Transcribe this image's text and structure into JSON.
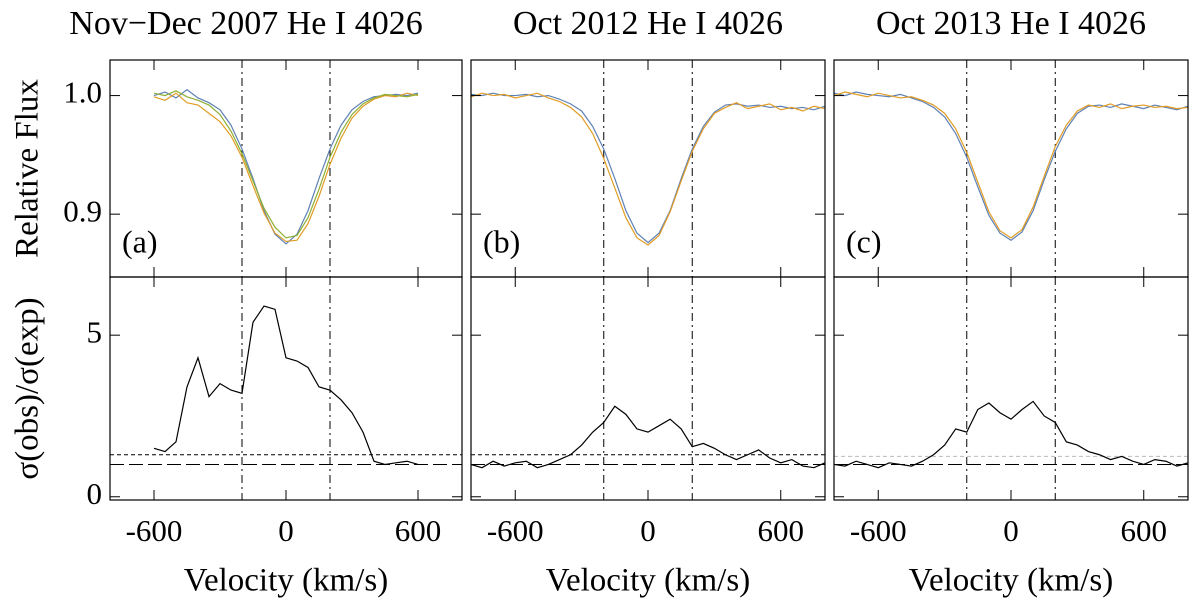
{
  "chart_data": [
    {
      "type": "line",
      "title": "Nov−Dec 2007 He I 4026",
      "y_label": "Relative Flux",
      "annotation": "(a)",
      "x": [
        -600,
        -550,
        -500,
        -450,
        -400,
        -350,
        -300,
        -250,
        -200,
        -150,
        -100,
        -50,
        0,
        50,
        100,
        150,
        200,
        250,
        300,
        350,
        400,
        450,
        500,
        550,
        600
      ],
      "series": [
        {
          "color": "#5e81b5",
          "values": [
            1.0,
            1.003,
            0.998,
            1.005,
            0.998,
            0.994,
            0.988,
            0.975,
            0.955,
            0.93,
            0.903,
            0.883,
            0.875,
            0.883,
            0.903,
            0.93,
            0.955,
            0.975,
            0.988,
            0.995,
            0.999,
            1.0,
            1.001,
            1.0,
            1.002
          ]
        },
        {
          "color": "#e19c24",
          "values": [
            0.999,
            0.996,
            1.002,
            0.994,
            0.992,
            0.985,
            0.978,
            0.966,
            0.948,
            0.924,
            0.901,
            0.884,
            0.877,
            0.878,
            0.892,
            0.915,
            0.942,
            0.964,
            0.981,
            0.991,
            0.997,
            1.0,
            0.999,
            1.002,
            1.0
          ]
        },
        {
          "color": "#8fb032",
          "values": [
            1.002,
            1.0,
            1.004,
            0.999,
            0.996,
            0.992,
            0.984,
            0.97,
            0.951,
            0.928,
            0.905,
            0.889,
            0.88,
            0.882,
            0.897,
            0.921,
            0.948,
            0.969,
            0.984,
            0.993,
            0.998,
            1.001,
            1.0,
            0.999,
            1.001
          ]
        }
      ],
      "xlim": [
        -800,
        800
      ],
      "xticks": [
        -600,
        0,
        600
      ],
      "ylim": [
        0.847,
        1.03
      ],
      "yticks": [
        0.9,
        {
          "value": 1,
          "label": "1.0"
        }
      ],
      "vlines": [
        -200,
        200
      ]
    },
    {
      "type": "line",
      "title": "Oct 2012 He I 4026",
      "annotation": "(b)",
      "x": [
        -800,
        -750,
        -700,
        -650,
        -600,
        -550,
        -500,
        -450,
        -400,
        -350,
        -300,
        -250,
        -200,
        -150,
        -100,
        -50,
        0,
        50,
        100,
        150,
        200,
        250,
        300,
        350,
        400,
        450,
        500,
        550,
        600,
        650,
        700,
        750,
        800
      ],
      "series": [
        {
          "color": "#5e81b5",
          "values": [
            1.001,
            1.0,
            1.002,
            1.0,
            1.0,
            1.001,
            0.999,
            1.0,
            0.997,
            0.993,
            0.987,
            0.974,
            0.955,
            0.93,
            0.903,
            0.884,
            0.876,
            0.884,
            0.903,
            0.93,
            0.955,
            0.974,
            0.986,
            0.992,
            0.993,
            0.991,
            0.992,
            0.99,
            0.991,
            0.989,
            0.99,
            0.988,
            0.991
          ]
        },
        {
          "color": "#e19c24",
          "values": [
            0.999,
            1.002,
            1.0,
            1.001,
            0.998,
            1.0,
            1.002,
            0.998,
            0.995,
            0.99,
            0.982,
            0.968,
            0.947,
            0.922,
            0.897,
            0.88,
            0.874,
            0.882,
            0.902,
            0.928,
            0.953,
            0.972,
            0.985,
            0.99,
            0.994,
            0.989,
            0.991,
            0.993,
            0.988,
            0.99,
            0.987,
            0.991,
            0.989
          ]
        }
      ],
      "xlim": [
        -800,
        800
      ],
      "xticks": [
        -600,
        0,
        600
      ],
      "ylim": [
        0.847,
        1.03
      ],
      "yticks": [
        0.9,
        {
          "value": 1,
          "label": "1.0"
        }
      ],
      "vlines": [
        -200,
        200
      ]
    },
    {
      "type": "line",
      "title": "Oct 2013 He I 4026",
      "annotation": "(c)",
      "x": [
        -800,
        -750,
        -700,
        -650,
        -600,
        -550,
        -500,
        -450,
        -400,
        -350,
        -300,
        -250,
        -200,
        -150,
        -100,
        -50,
        0,
        50,
        100,
        150,
        200,
        250,
        300,
        350,
        400,
        450,
        500,
        550,
        600,
        650,
        700,
        750,
        800
      ],
      "series": [
        {
          "color": "#5e81b5",
          "values": [
            1.002,
            1.0,
            1.003,
            1.001,
            1.0,
            0.999,
            1.001,
            0.998,
            0.995,
            0.99,
            0.982,
            0.968,
            0.948,
            0.923,
            0.899,
            0.884,
            0.878,
            0.885,
            0.903,
            0.929,
            0.953,
            0.972,
            0.985,
            0.991,
            0.992,
            0.99,
            0.993,
            0.991,
            0.989,
            0.992,
            0.99,
            0.988,
            0.991
          ]
        },
        {
          "color": "#e19c24",
          "values": [
            1.0,
            1.003,
            1.001,
            0.999,
            1.002,
            1.0,
            0.998,
            0.999,
            0.996,
            0.992,
            0.985,
            0.972,
            0.952,
            0.927,
            0.902,
            0.886,
            0.88,
            0.887,
            0.906,
            0.932,
            0.957,
            0.975,
            0.987,
            0.992,
            0.99,
            0.993,
            0.989,
            0.991,
            0.992,
            0.99,
            0.991,
            0.989,
            0.99
          ]
        }
      ],
      "xlim": [
        -800,
        800
      ],
      "xticks": [
        -600,
        0,
        600
      ],
      "ylim": [
        0.847,
        1.03
      ],
      "yticks": [
        0.9,
        {
          "value": 1,
          "label": "1.0"
        }
      ],
      "vlines": [
        -200,
        200
      ]
    },
    {
      "type": "line",
      "y_label": "σ(obs)/σ(exp)",
      "x_label": "Velocity (km/s)",
      "x": [
        -600,
        -550,
        -500,
        -450,
        -400,
        -350,
        -300,
        -250,
        -200,
        -150,
        -100,
        -50,
        0,
        50,
        100,
        150,
        200,
        250,
        300,
        350,
        400,
        450,
        500,
        550,
        600
      ],
      "series": [
        {
          "color": "#000000",
          "values": [
            1.5,
            1.4,
            1.7,
            3.4,
            4.3,
            3.1,
            3.5,
            3.3,
            3.2,
            5.4,
            5.9,
            5.8,
            4.3,
            4.2,
            4.0,
            3.4,
            3.3,
            3.0,
            2.6,
            2.0,
            1.1,
            1.0,
            1.05,
            1.1,
            1.0
          ]
        }
      ],
      "xlim": [
        -800,
        800
      ],
      "xticks": [
        -600,
        0,
        600
      ],
      "ylim": [
        -0.1,
        6.8
      ],
      "yticks": [
        0,
        5
      ],
      "vlines": [
        -200,
        200
      ],
      "hlines": [
        {
          "y": 1.3,
          "dash": "short",
          "color": "#000000"
        },
        {
          "y": 1,
          "dash": "long",
          "color": "#000000"
        }
      ]
    },
    {
      "type": "line",
      "x_label": "Velocity (km/s)",
      "x": [
        -800,
        -750,
        -700,
        -650,
        -600,
        -550,
        -500,
        -450,
        -400,
        -350,
        -300,
        -250,
        -200,
        -150,
        -100,
        -50,
        0,
        50,
        100,
        150,
        200,
        250,
        300,
        350,
        400,
        450,
        500,
        550,
        600,
        650,
        700,
        750,
        800
      ],
      "series": [
        {
          "color": "#000000",
          "values": [
            1.0,
            0.9,
            1.1,
            0.95,
            1.05,
            1.1,
            0.9,
            1.0,
            1.15,
            1.3,
            1.6,
            2.0,
            2.3,
            2.8,
            2.55,
            2.1,
            2.0,
            2.2,
            2.4,
            2.1,
            1.55,
            1.65,
            1.5,
            1.3,
            1.15,
            1.3,
            1.45,
            1.2,
            1.05,
            1.15,
            0.95,
            0.9,
            1.05
          ]
        }
      ],
      "xlim": [
        -800,
        800
      ],
      "xticks": [
        -600,
        0,
        600
      ],
      "ylim": [
        -0.1,
        6.8
      ],
      "yticks": [
        0,
        5
      ],
      "vlines": [
        -200,
        200
      ],
      "hlines": [
        {
          "y": 1.3,
          "dash": "short",
          "color": "#000000"
        },
        {
          "y": 1,
          "dash": "long",
          "color": "#000000"
        }
      ]
    },
    {
      "type": "line",
      "x_label": "Velocity (km/s)",
      "x": [
        -800,
        -750,
        -700,
        -650,
        -600,
        -550,
        -500,
        -450,
        -400,
        -350,
        -300,
        -250,
        -200,
        -150,
        -100,
        -50,
        0,
        50,
        100,
        150,
        200,
        250,
        300,
        350,
        400,
        450,
        500,
        550,
        600,
        650,
        700,
        750,
        800
      ],
      "series": [
        {
          "color": "#000000",
          "values": [
            1.0,
            0.95,
            1.1,
            1.0,
            0.9,
            1.05,
            1.0,
            0.95,
            1.1,
            1.3,
            1.6,
            2.1,
            2.0,
            2.7,
            2.9,
            2.6,
            2.4,
            2.7,
            2.95,
            2.5,
            2.3,
            1.7,
            1.6,
            1.4,
            1.3,
            1.15,
            1.25,
            1.1,
            1.0,
            1.15,
            1.1,
            0.95,
            1.05
          ]
        }
      ],
      "xlim": [
        -800,
        800
      ],
      "xticks": [
        -600,
        0,
        600
      ],
      "ylim": [
        -0.1,
        6.8
      ],
      "yticks": [
        0,
        5
      ],
      "vlines": [
        -200,
        200
      ],
      "hlines": [
        {
          "y": 1.25,
          "dash": "short",
          "color": "#bbbbbb"
        },
        {
          "y": 1,
          "dash": "long",
          "color": "#000000"
        }
      ]
    }
  ]
}
